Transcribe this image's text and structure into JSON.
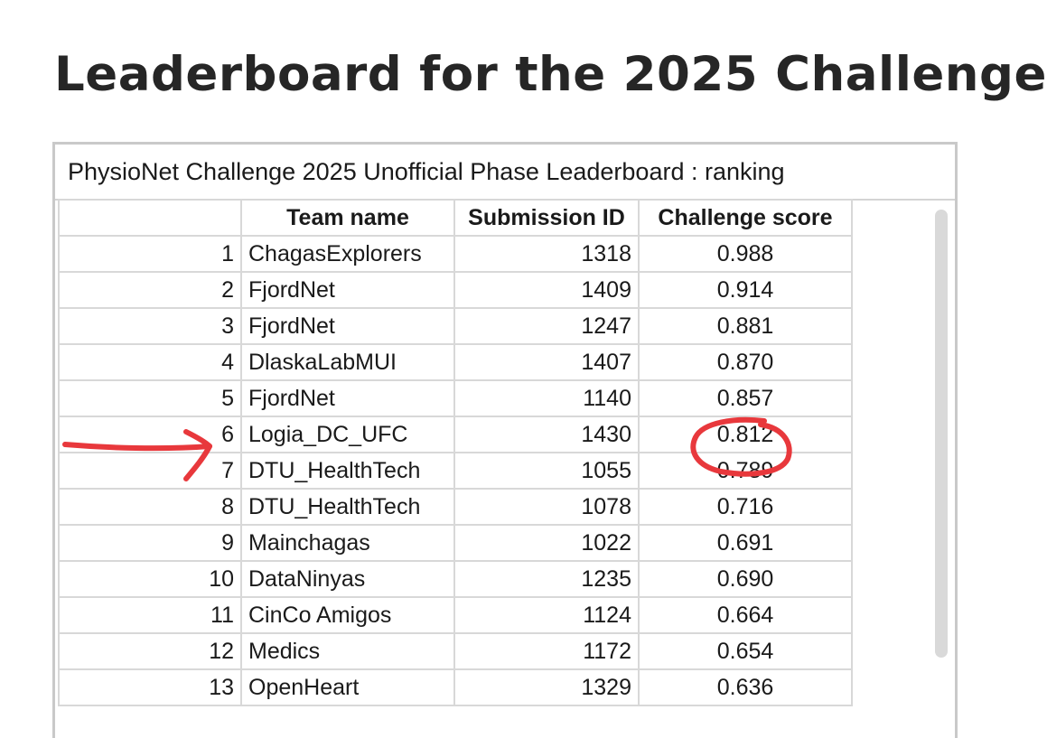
{
  "page": {
    "title": "Leaderboard for the 2025 Challenge"
  },
  "leaderboard": {
    "caption": "PhysioNet Challenge 2025 Unofficial Phase Leaderboard : ranking",
    "columns": [
      "",
      "Team name",
      "Submission ID",
      "Challenge score"
    ],
    "rows": [
      {
        "rank": "1",
        "team": "ChagasExplorers",
        "submission_id": "1318",
        "score": "0.988"
      },
      {
        "rank": "2",
        "team": "FjordNet",
        "submission_id": "1409",
        "score": "0.914"
      },
      {
        "rank": "3",
        "team": "FjordNet",
        "submission_id": "1247",
        "score": "0.881"
      },
      {
        "rank": "4",
        "team": "DlaskaLabMUI",
        "submission_id": "1407",
        "score": "0.870"
      },
      {
        "rank": "5",
        "team": "FjordNet",
        "submission_id": "1140",
        "score": "0.857"
      },
      {
        "rank": "6",
        "team": "Logia_DC_UFC",
        "submission_id": "1430",
        "score": "0.812"
      },
      {
        "rank": "7",
        "team": "DTU_HealthTech",
        "submission_id": "1055",
        "score": "0.789"
      },
      {
        "rank": "8",
        "team": "DTU_HealthTech",
        "submission_id": "1078",
        "score": "0.716"
      },
      {
        "rank": "9",
        "team": "Mainchagas",
        "submission_id": "1022",
        "score": "0.691"
      },
      {
        "rank": "10",
        "team": "DataNinyas",
        "submission_id": "1235",
        "score": "0.690"
      },
      {
        "rank": "11",
        "team": "CinCo Amigos",
        "submission_id": "1124",
        "score": "0.664"
      },
      {
        "rank": "12",
        "team": "Medics",
        "submission_id": "1172",
        "score": "0.654"
      },
      {
        "rank": "13",
        "team": "OpenHeart",
        "submission_id": "1329",
        "score": "0.636"
      }
    ]
  },
  "annotations": {
    "highlighted_rank": "6",
    "arrow_icon": "hand-drawn-arrow-icon",
    "circle_icon": "hand-drawn-circle-icon",
    "color": "#e8383c"
  }
}
